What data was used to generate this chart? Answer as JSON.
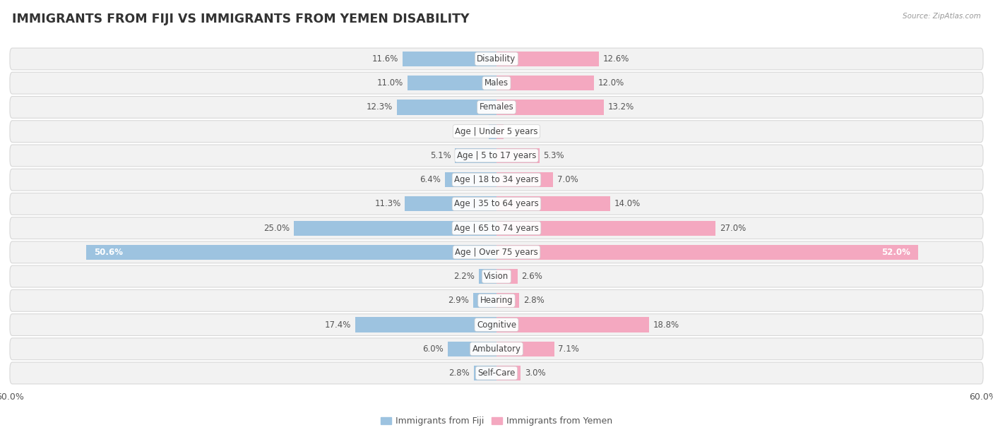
{
  "title": "IMMIGRANTS FROM FIJI VS IMMIGRANTS FROM YEMEN DISABILITY",
  "source": "Source: ZipAtlas.com",
  "categories": [
    "Disability",
    "Males",
    "Females",
    "Age | Under 5 years",
    "Age | 5 to 17 years",
    "Age | 18 to 34 years",
    "Age | 35 to 64 years",
    "Age | 65 to 74 years",
    "Age | Over 75 years",
    "Vision",
    "Hearing",
    "Cognitive",
    "Ambulatory",
    "Self-Care"
  ],
  "fiji_values": [
    11.6,
    11.0,
    12.3,
    0.92,
    5.1,
    6.4,
    11.3,
    25.0,
    50.6,
    2.2,
    2.9,
    17.4,
    6.0,
    2.8
  ],
  "yemen_values": [
    12.6,
    12.0,
    13.2,
    0.91,
    5.3,
    7.0,
    14.0,
    27.0,
    52.0,
    2.6,
    2.8,
    18.8,
    7.1,
    3.0
  ],
  "fiji_color": "#9dc3e0",
  "yemen_color": "#f4a8c0",
  "fiji_color_strong": "#6fa8d0",
  "yemen_color_strong": "#e8648a",
  "fiji_label": "Immigrants from Fiji",
  "yemen_label": "Immigrants from Yemen",
  "xlim": 60.0,
  "bar_height": 0.62,
  "row_bg": "#f2f2f2",
  "row_border": "#d8d8d8",
  "title_fontsize": 12.5,
  "value_fontsize": 8.5,
  "category_fontsize": 8.5,
  "legend_fontsize": 9
}
